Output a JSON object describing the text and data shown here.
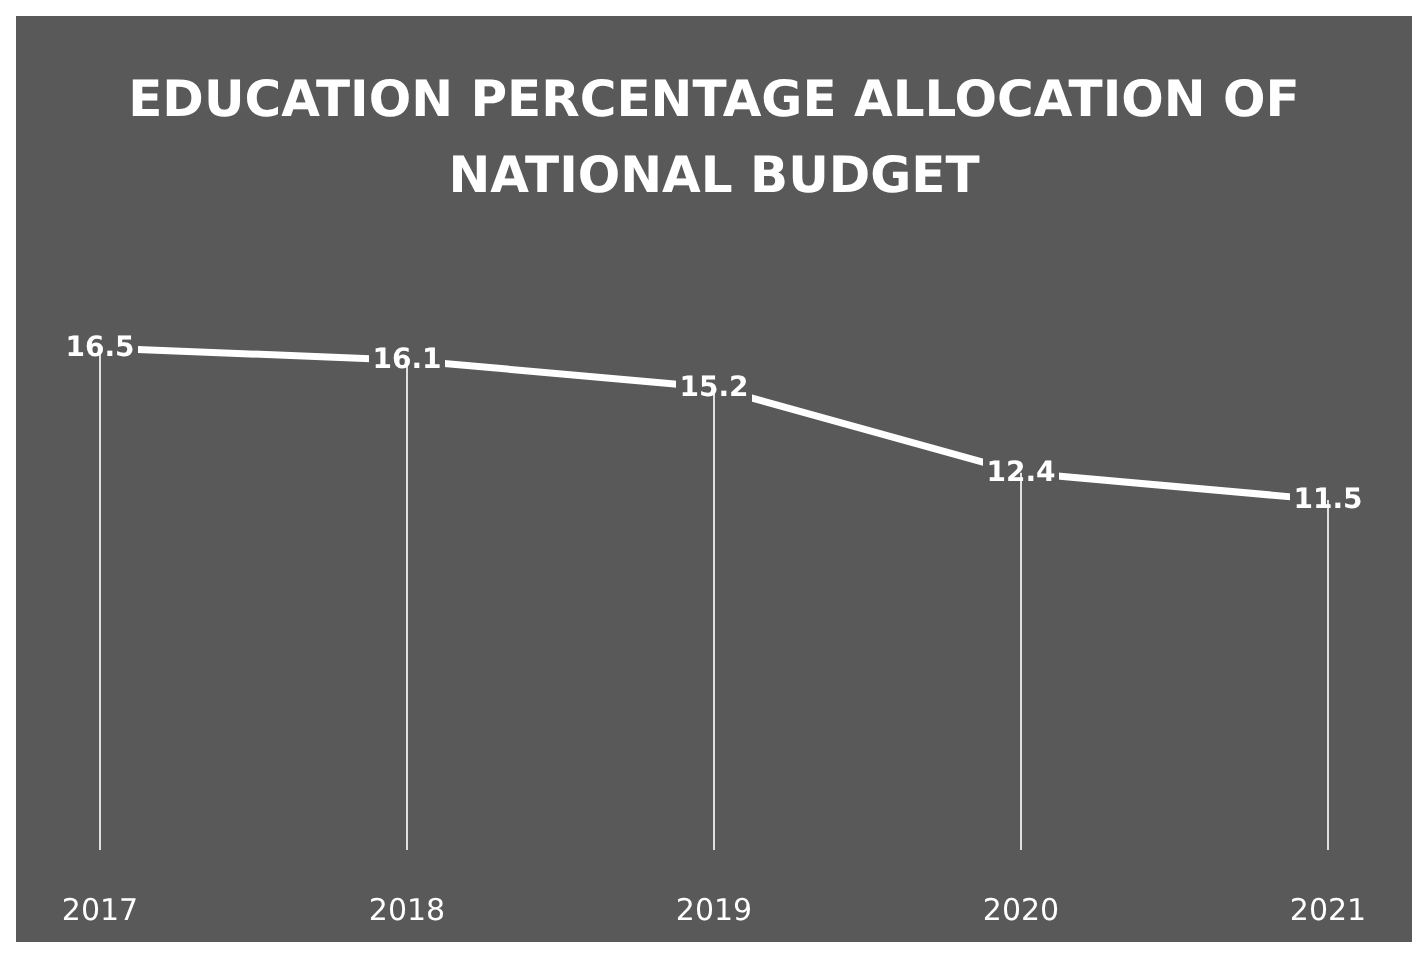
{
  "chart_data": {
    "type": "line",
    "title": "EDUCATION PERCENTAGE ALLOCATION OF NATIONAL BUDGET",
    "categories": [
      "2017",
      "2018",
      "2019",
      "2020",
      "2021"
    ],
    "series": [
      {
        "color": "#ffffff",
        "values": [
          16.5,
          16.1,
          15.2,
          12.4,
          11.5
        ]
      }
    ],
    "data_labels": true,
    "grid": "x",
    "line_style": "solid"
  }
}
